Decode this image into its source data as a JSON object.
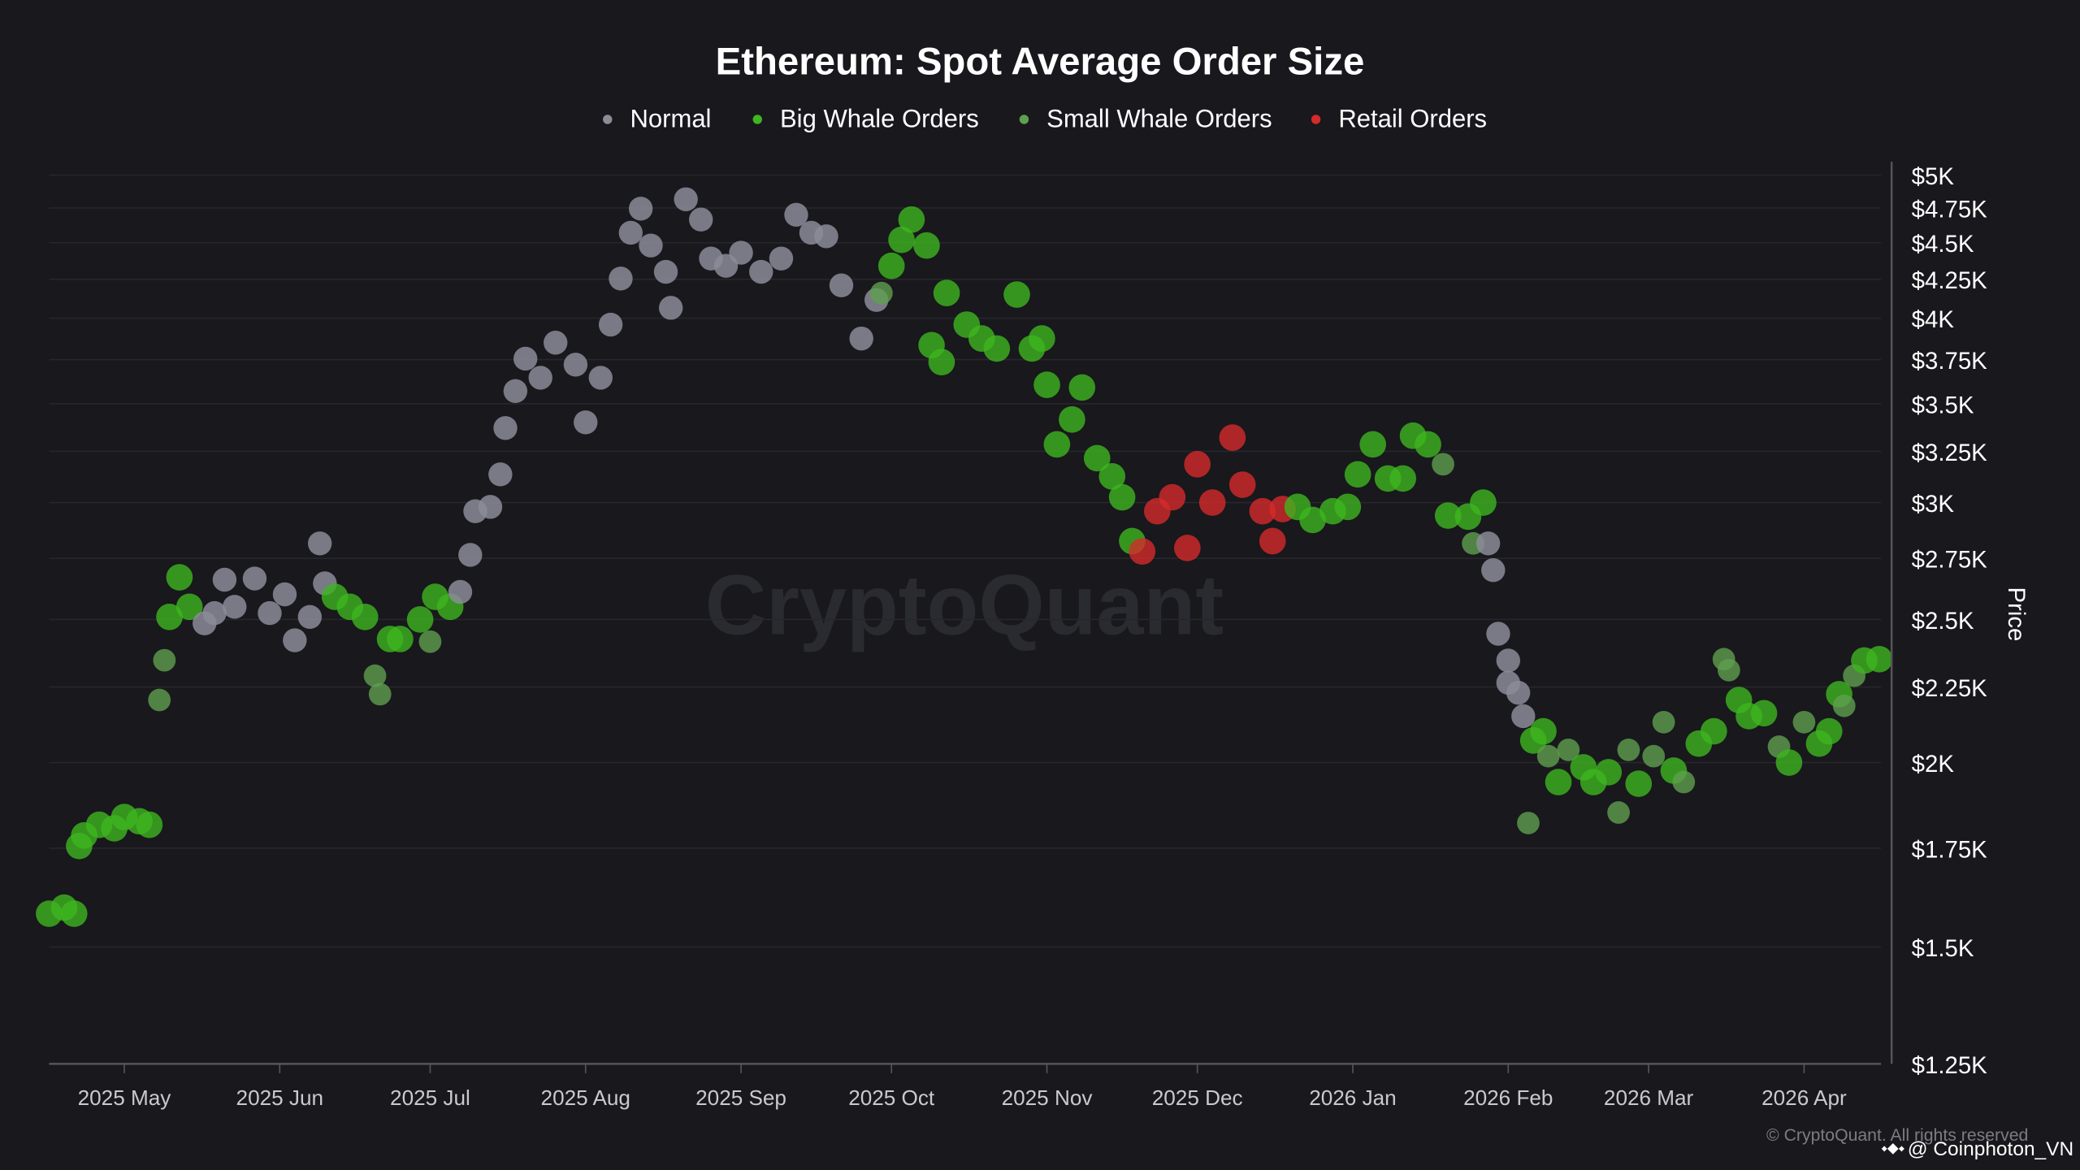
{
  "chart_data": {
    "type": "scatter",
    "title": "Ethereum: Spot Average Order Size",
    "ylabel": "Price",
    "y_scale": "log",
    "ylim": [
      1250,
      5000
    ],
    "xlim": [
      "2025-04-16",
      "2026-04-16"
    ],
    "grid": "horizontal",
    "legend_position": "top",
    "legend": [
      {
        "key": "n",
        "label": "Normal",
        "color": "#8c8c99"
      },
      {
        "key": "b",
        "label": "Big Whale Orders",
        "color": "#3fb51f"
      },
      {
        "key": "s",
        "label": "Small Whale Orders",
        "color": "#5f9f4f"
      },
      {
        "key": "r",
        "label": "Retail Orders",
        "color": "#d42a2a"
      }
    ],
    "y_ticks": [
      {
        "value": 5000,
        "label": "$5K"
      },
      {
        "value": 4750,
        "label": "$4.75K"
      },
      {
        "value": 4500,
        "label": "$4.5K"
      },
      {
        "value": 4250,
        "label": "$4.25K"
      },
      {
        "value": 4000,
        "label": "$4K"
      },
      {
        "value": 3750,
        "label": "$3.75K"
      },
      {
        "value": 3500,
        "label": "$3.5K"
      },
      {
        "value": 3250,
        "label": "$3.25K"
      },
      {
        "value": 3000,
        "label": "$3K"
      },
      {
        "value": 2750,
        "label": "$2.75K"
      },
      {
        "value": 2500,
        "label": "$2.5K"
      },
      {
        "value": 2250,
        "label": "$2.25K"
      },
      {
        "value": 2000,
        "label": "$2K"
      },
      {
        "value": 1750,
        "label": "$1.75K"
      },
      {
        "value": 1500,
        "label": "$1.5K"
      },
      {
        "value": 1250,
        "label": "$1.25K"
      }
    ],
    "x_ticks": [
      {
        "date": "2025-05-01",
        "label": "2025 May"
      },
      {
        "date": "2025-06-01",
        "label": "2025 Jun"
      },
      {
        "date": "2025-07-01",
        "label": "2025 Jul"
      },
      {
        "date": "2025-08-01",
        "label": "2025 Aug"
      },
      {
        "date": "2025-09-01",
        "label": "2025 Sep"
      },
      {
        "date": "2025-10-01",
        "label": "2025 Oct"
      },
      {
        "date": "2025-11-01",
        "label": "2025 Nov"
      },
      {
        "date": "2025-12-01",
        "label": "2025 Dec"
      },
      {
        "date": "2026-01-01",
        "label": "2026 Jan"
      },
      {
        "date": "2026-02-01",
        "label": "2026 Feb"
      },
      {
        "date": "2026-03-01",
        "label": "2026 Mar"
      },
      {
        "date": "2026-04-01",
        "label": "2026 Apr"
      }
    ],
    "points": [
      [
        "2025-04-16",
        1580,
        "b"
      ],
      [
        "2025-04-19",
        1595,
        "b"
      ],
      [
        "2025-04-21",
        1580,
        "b"
      ],
      [
        "2025-04-22",
        1756,
        "b"
      ],
      [
        "2025-04-23",
        1785,
        "b"
      ],
      [
        "2025-04-26",
        1815,
        "b"
      ],
      [
        "2025-04-29",
        1805,
        "b"
      ],
      [
        "2025-05-01",
        1837,
        "b"
      ],
      [
        "2025-05-04",
        1825,
        "b"
      ],
      [
        "2025-05-06",
        1815,
        "b"
      ],
      [
        "2025-05-08",
        2205,
        "s"
      ],
      [
        "2025-05-09",
        2346,
        "s"
      ],
      [
        "2025-05-10",
        2510,
        "b"
      ],
      [
        "2025-05-12",
        2670,
        "b"
      ],
      [
        "2025-05-14",
        2550,
        "b"
      ],
      [
        "2025-05-17",
        2485,
        "n"
      ],
      [
        "2025-05-19",
        2525,
        "n"
      ],
      [
        "2025-05-21",
        2660,
        "n"
      ],
      [
        "2025-05-23",
        2550,
        "n"
      ],
      [
        "2025-05-27",
        2665,
        "n"
      ],
      [
        "2025-05-30",
        2525,
        "n"
      ],
      [
        "2025-06-02",
        2600,
        "n"
      ],
      [
        "2025-06-04",
        2420,
        "n"
      ],
      [
        "2025-06-07",
        2510,
        "n"
      ],
      [
        "2025-06-09",
        2815,
        "n"
      ],
      [
        "2025-06-10",
        2645,
        "n"
      ],
      [
        "2025-06-12",
        2590,
        "b"
      ],
      [
        "2025-06-15",
        2550,
        "b"
      ],
      [
        "2025-06-18",
        2510,
        "b"
      ],
      [
        "2025-06-20",
        2290,
        "s"
      ],
      [
        "2025-06-21",
        2225,
        "s"
      ],
      [
        "2025-06-23",
        2425,
        "b"
      ],
      [
        "2025-06-25",
        2425,
        "b"
      ],
      [
        "2025-06-29",
        2500,
        "b"
      ],
      [
        "2025-07-01",
        2415,
        "s"
      ],
      [
        "2025-07-02",
        2590,
        "b"
      ],
      [
        "2025-07-05",
        2550,
        "b"
      ],
      [
        "2025-07-07",
        2610,
        "n"
      ],
      [
        "2025-07-09",
        2765,
        "n"
      ],
      [
        "2025-07-10",
        2960,
        "n"
      ],
      [
        "2025-07-13",
        2980,
        "n"
      ],
      [
        "2025-07-15",
        3135,
        "n"
      ],
      [
        "2025-07-16",
        3370,
        "n"
      ],
      [
        "2025-07-18",
        3570,
        "n"
      ],
      [
        "2025-07-20",
        3755,
        "n"
      ],
      [
        "2025-07-23",
        3645,
        "n"
      ],
      [
        "2025-07-26",
        3850,
        "n"
      ],
      [
        "2025-07-30",
        3720,
        "n"
      ],
      [
        "2025-08-01",
        3400,
        "n"
      ],
      [
        "2025-08-04",
        3645,
        "n"
      ],
      [
        "2025-08-06",
        3960,
        "n"
      ],
      [
        "2025-08-08",
        4255,
        "n"
      ],
      [
        "2025-08-10",
        4570,
        "n"
      ],
      [
        "2025-08-12",
        4745,
        "n"
      ],
      [
        "2025-08-14",
        4480,
        "n"
      ],
      [
        "2025-08-17",
        4300,
        "n"
      ],
      [
        "2025-08-18",
        4065,
        "n"
      ],
      [
        "2025-08-21",
        4815,
        "n"
      ],
      [
        "2025-08-24",
        4665,
        "n"
      ],
      [
        "2025-08-26",
        4390,
        "n"
      ],
      [
        "2025-08-29",
        4340,
        "n"
      ],
      [
        "2025-09-01",
        4430,
        "n"
      ],
      [
        "2025-09-05",
        4300,
        "n"
      ],
      [
        "2025-09-09",
        4390,
        "n"
      ],
      [
        "2025-09-12",
        4700,
        "n"
      ],
      [
        "2025-09-15",
        4570,
        "n"
      ],
      [
        "2025-09-18",
        4545,
        "n"
      ],
      [
        "2025-09-21",
        4210,
        "n"
      ],
      [
        "2025-09-25",
        3875,
        "n"
      ],
      [
        "2025-09-28",
        4115,
        "n"
      ],
      [
        "2025-09-29",
        4160,
        "s"
      ],
      [
        "2025-10-01",
        4340,
        "b"
      ],
      [
        "2025-10-03",
        4520,
        "b"
      ],
      [
        "2025-10-05",
        4665,
        "b"
      ],
      [
        "2025-10-08",
        4480,
        "b"
      ],
      [
        "2025-10-09",
        3835,
        "b"
      ],
      [
        "2025-10-11",
        3735,
        "b"
      ],
      [
        "2025-10-12",
        4160,
        "b"
      ],
      [
        "2025-10-16",
        3960,
        "b"
      ],
      [
        "2025-10-19",
        3875,
        "b"
      ],
      [
        "2025-10-22",
        3815,
        "b"
      ],
      [
        "2025-10-26",
        4150,
        "b"
      ],
      [
        "2025-10-29",
        3815,
        "b"
      ],
      [
        "2025-10-31",
        3875,
        "b"
      ],
      [
        "2025-11-01",
        3605,
        "b"
      ],
      [
        "2025-11-03",
        3285,
        "b"
      ],
      [
        "2025-11-06",
        3415,
        "b"
      ],
      [
        "2025-11-08",
        3590,
        "b"
      ],
      [
        "2025-11-11",
        3215,
        "b"
      ],
      [
        "2025-11-14",
        3125,
        "b"
      ],
      [
        "2025-11-16",
        3025,
        "b"
      ],
      [
        "2025-11-18",
        2825,
        "b"
      ],
      [
        "2025-11-20",
        2780,
        "r"
      ],
      [
        "2025-11-23",
        2960,
        "r"
      ],
      [
        "2025-11-26",
        3025,
        "r"
      ],
      [
        "2025-11-29",
        2795,
        "r"
      ],
      [
        "2025-12-01",
        3185,
        "r"
      ],
      [
        "2025-12-04",
        3000,
        "r"
      ],
      [
        "2025-12-08",
        3320,
        "r"
      ],
      [
        "2025-12-10",
        3085,
        "r"
      ],
      [
        "2025-12-14",
        2960,
        "r"
      ],
      [
        "2025-12-16",
        2825,
        "r"
      ],
      [
        "2025-12-18",
        2970,
        "r"
      ],
      [
        "2025-12-21",
        2980,
        "b"
      ],
      [
        "2025-12-24",
        2920,
        "b"
      ],
      [
        "2025-12-28",
        2960,
        "b"
      ],
      [
        "2025-12-31",
        2980,
        "b"
      ],
      [
        "2026-01-02",
        3135,
        "b"
      ],
      [
        "2026-01-05",
        3285,
        "b"
      ],
      [
        "2026-01-08",
        3115,
        "b"
      ],
      [
        "2026-01-11",
        3115,
        "b"
      ],
      [
        "2026-01-13",
        3330,
        "b"
      ],
      [
        "2026-01-16",
        3285,
        "b"
      ],
      [
        "2026-01-19",
        3185,
        "s"
      ],
      [
        "2026-01-20",
        2940,
        "b"
      ],
      [
        "2026-01-24",
        2935,
        "b"
      ],
      [
        "2026-01-25",
        2815,
        "s"
      ],
      [
        "2026-01-27",
        3000,
        "b"
      ],
      [
        "2026-01-28",
        2815,
        "n"
      ],
      [
        "2026-01-29",
        2700,
        "n"
      ],
      [
        "2026-01-30",
        2445,
        "n"
      ],
      [
        "2026-02-01",
        2345,
        "n"
      ],
      [
        "2026-02-01",
        2265,
        "n"
      ],
      [
        "2026-02-03",
        2230,
        "n"
      ],
      [
        "2026-02-04",
        2150,
        "n"
      ],
      [
        "2026-02-05",
        1820,
        "s"
      ],
      [
        "2026-02-06",
        2070,
        "b"
      ],
      [
        "2026-02-08",
        2100,
        "b"
      ],
      [
        "2026-02-09",
        2020,
        "s"
      ],
      [
        "2026-02-11",
        1940,
        "b"
      ],
      [
        "2026-02-13",
        2040,
        "s"
      ],
      [
        "2026-02-16",
        1985,
        "b"
      ],
      [
        "2026-02-18",
        1940,
        "b"
      ],
      [
        "2026-02-21",
        1970,
        "b"
      ],
      [
        "2026-02-23",
        1850,
        "s"
      ],
      [
        "2026-02-25",
        2040,
        "s"
      ],
      [
        "2026-02-27",
        1935,
        "b"
      ],
      [
        "2026-03-02",
        2020,
        "s"
      ],
      [
        "2026-03-04",
        2130,
        "s"
      ],
      [
        "2026-03-06",
        1975,
        "b"
      ],
      [
        "2026-03-08",
        1940,
        "s"
      ],
      [
        "2026-03-11",
        2060,
        "b"
      ],
      [
        "2026-03-14",
        2100,
        "b"
      ],
      [
        "2026-03-16",
        2350,
        "s"
      ],
      [
        "2026-03-17",
        2310,
        "s"
      ],
      [
        "2026-03-19",
        2205,
        "b"
      ],
      [
        "2026-03-21",
        2150,
        "b"
      ],
      [
        "2026-03-24",
        2160,
        "b"
      ],
      [
        "2026-03-27",
        2050,
        "s"
      ],
      [
        "2026-03-29",
        2000,
        "b"
      ],
      [
        "2026-04-01",
        2130,
        "s"
      ],
      [
        "2026-04-04",
        2060,
        "b"
      ],
      [
        "2026-04-06",
        2100,
        "b"
      ],
      [
        "2026-04-08",
        2225,
        "b"
      ],
      [
        "2026-04-09",
        2185,
        "s"
      ],
      [
        "2026-04-11",
        2290,
        "s"
      ],
      [
        "2026-04-13",
        2345,
        "b"
      ],
      [
        "2026-04-16",
        2350,
        "b"
      ]
    ]
  },
  "watermark": "CryptoQuant",
  "copyright": "© CryptoQuant. All rights reserved",
  "credit": "@ Coinphoton_VN",
  "colors": {
    "background": "#18181d",
    "grid": "#26262c"
  }
}
